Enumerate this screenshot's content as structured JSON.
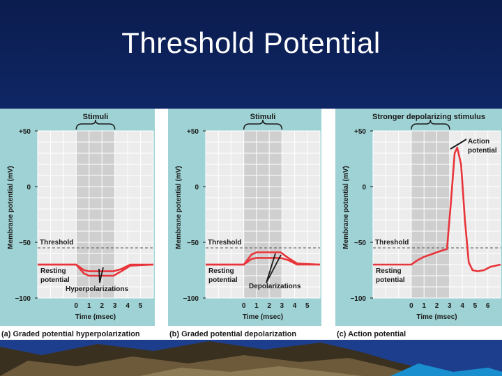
{
  "slide": {
    "title": "Threshold Potential"
  },
  "colors": {
    "background": "#13307a",
    "panel": "#9fd2d4",
    "plot": "#ececec",
    "stimulus_band": "#cfcfcf",
    "trace": "#e8343a"
  },
  "chart_data": [
    {
      "type": "line",
      "stimulus_label": "Stimuli",
      "ylabel": "Membrane potential (mV)",
      "xlabel": "Time (msec)",
      "y_ticks": [
        "+50",
        "0",
        "−50",
        "−100"
      ],
      "x_ticks": [
        "0",
        "1",
        "2",
        "3",
        "4",
        "5"
      ],
      "ylim": [
        -100,
        50
      ],
      "xlim": [
        -3,
        6
      ],
      "stimulus_window": [
        0,
        3
      ],
      "threshold": {
        "label": "Threshold",
        "value": -55
      },
      "annotations": {
        "resting": "Resting\npotential",
        "change": "Hyperpolarizations"
      },
      "caption": "(a) Graded potential hyperpolarization",
      "series": [
        {
          "x": [
            -3,
            0,
            0.6,
            1,
            2,
            2.9,
            3.5,
            4.2,
            6
          ],
          "y": [
            -70,
            -70,
            -75,
            -76,
            -76,
            -76,
            -74,
            -70,
            -70
          ]
        },
        {
          "x": [
            -3,
            0,
            0.6,
            1,
            2,
            2.9,
            3.5,
            4.2,
            6
          ],
          "y": [
            -70,
            -70,
            -78,
            -80,
            -80,
            -80,
            -76,
            -71,
            -70
          ]
        }
      ]
    },
    {
      "type": "line",
      "stimulus_label": "Stimuli",
      "ylabel": "Membrane potential (mV)",
      "xlabel": "Time (msec)",
      "y_ticks": [
        "+50",
        "0",
        "−50",
        "−100"
      ],
      "x_ticks": [
        "0",
        "1",
        "2",
        "3",
        "4",
        "5"
      ],
      "ylim": [
        -100,
        50
      ],
      "xlim": [
        -3,
        6
      ],
      "stimulus_window": [
        0,
        3
      ],
      "threshold": {
        "label": "Threshold",
        "value": -55
      },
      "annotations": {
        "resting": "Resting\npotential",
        "change": "Depolarizations"
      },
      "caption": "(b) Graded potential depolarization",
      "series": [
        {
          "x": [
            -3,
            0,
            0.6,
            1,
            2,
            2.9,
            3.5,
            4.2,
            6
          ],
          "y": [
            -70,
            -70,
            -65,
            -64,
            -64,
            -64,
            -66,
            -70,
            -70
          ]
        },
        {
          "x": [
            -3,
            0,
            0.6,
            1,
            2,
            2.9,
            3.5,
            4.2,
            6
          ],
          "y": [
            -70,
            -70,
            -61,
            -59,
            -59,
            -59,
            -64,
            -69,
            -70
          ]
        }
      ]
    },
    {
      "type": "line",
      "stimulus_label": "Stronger depolarizing stimulus",
      "ylabel": "Membrane potential (mV)",
      "xlabel": "Time (msec)",
      "y_ticks": [
        "+50",
        "0",
        "−50",
        "−100"
      ],
      "x_ticks": [
        "0",
        "1",
        "2",
        "3",
        "4",
        "5",
        "6"
      ],
      "ylim": [
        -100,
        50
      ],
      "xlim": [
        -3,
        7
      ],
      "stimulus_window": [
        0,
        3
      ],
      "threshold": {
        "label": "Threshold",
        "value": -55
      },
      "annotations": {
        "resting": "Resting\npotential",
        "change": "Action\npotential"
      },
      "caption": "(c) Action potential",
      "series": [
        {
          "x": [
            -3,
            0,
            0.5,
            1,
            1.5,
            2,
            2.5,
            2.8,
            3.1,
            3.4,
            3.6,
            3.9,
            4.2,
            4.5,
            4.8,
            5.2,
            5.7,
            6.2,
            7
          ],
          "y": [
            -70,
            -70,
            -66,
            -63,
            -61,
            -59,
            -57,
            -56,
            -15,
            30,
            35,
            20,
            -30,
            -68,
            -75,
            -76,
            -75,
            -72,
            -70
          ]
        }
      ]
    }
  ]
}
